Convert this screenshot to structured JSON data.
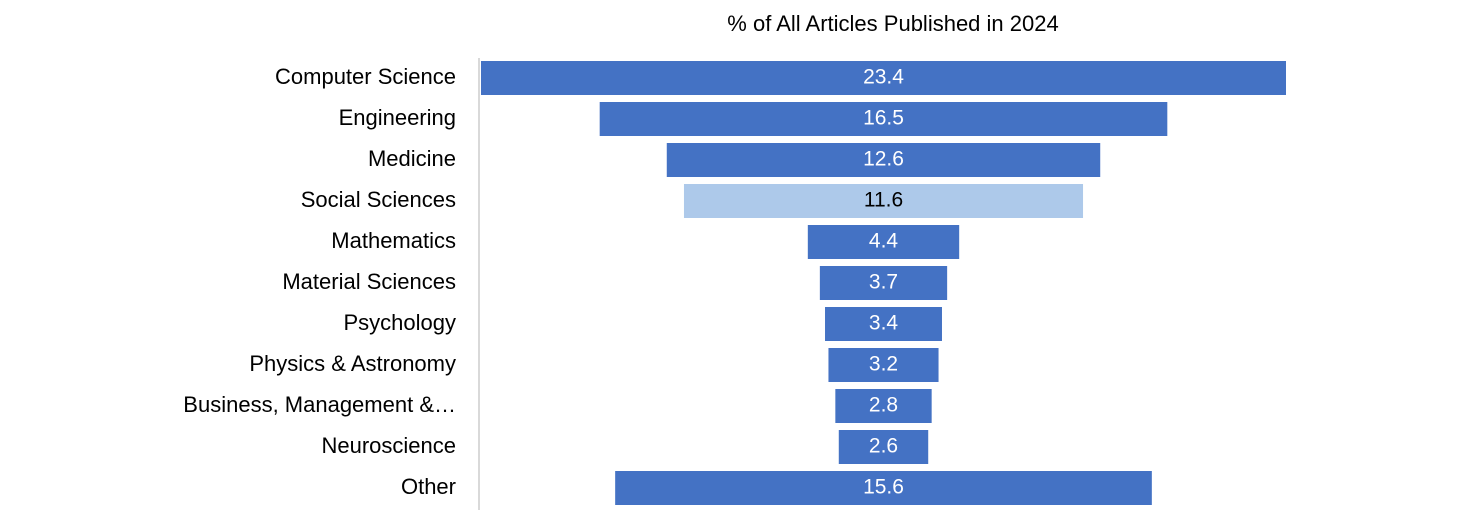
{
  "chart_data": {
    "type": "funnel",
    "title": "% of All Articles Published in 2024",
    "categories": [
      "Computer Science",
      "Engineering",
      "Medicine",
      "Social Sciences",
      "Mathematics",
      "Material Sciences",
      "Psychology",
      "Physics & Astronomy",
      "Business, Management &…",
      "Neuroscience",
      "Other"
    ],
    "values": [
      23.4,
      16.5,
      12.6,
      11.6,
      4.4,
      3.7,
      3.4,
      3.2,
      2.8,
      2.6,
      15.6
    ],
    "colors": [
      "#4472c4",
      "#4472c4",
      "#4472c4",
      "#adc9ea",
      "#4472c4",
      "#4472c4",
      "#4472c4",
      "#4472c4",
      "#4472c4",
      "#4472c4",
      "#4472c4"
    ]
  }
}
